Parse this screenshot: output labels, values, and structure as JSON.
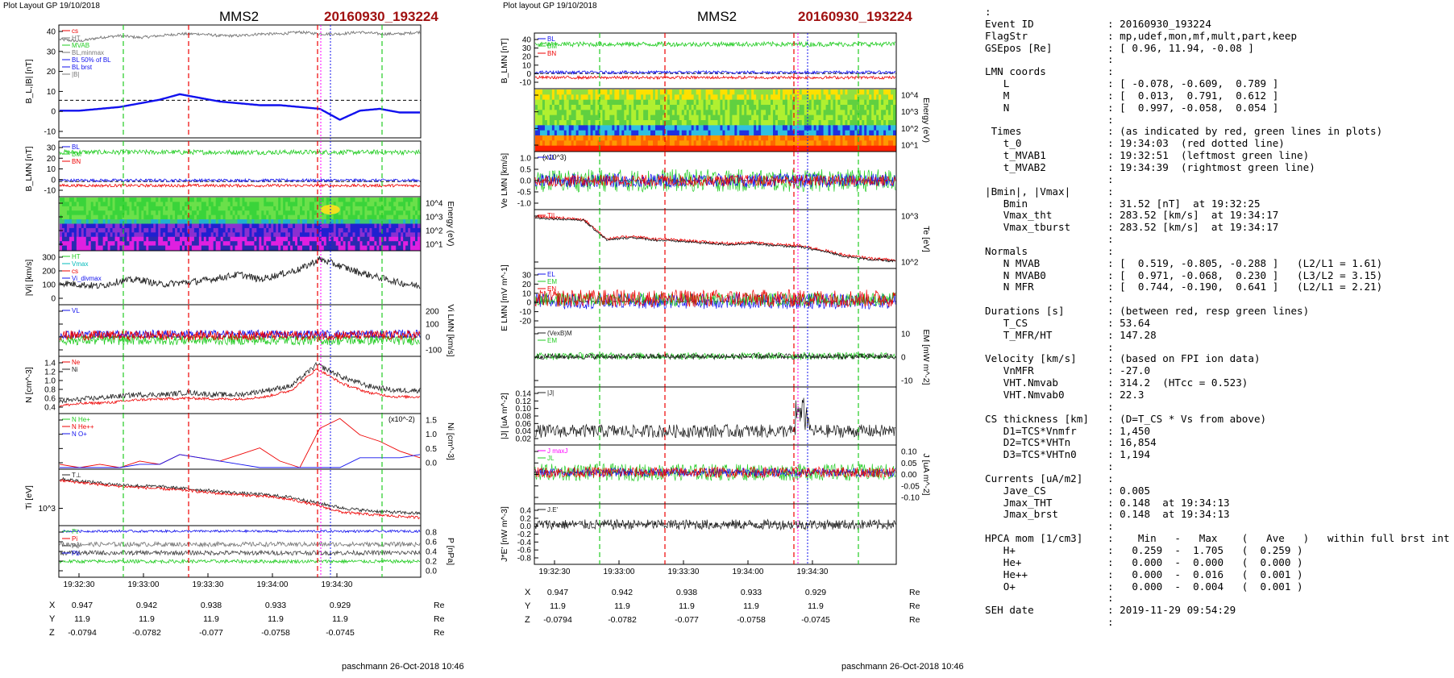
{
  "colors": {
    "black": "#000000",
    "red": "#ee0000",
    "green": "#22cc22",
    "blue": "#1111ee",
    "gray": "#777777",
    "darkred": "#a01010",
    "magenta": "#ff00ff",
    "cyan": "#00bbbb"
  },
  "time_ticks": [
    "19:32:30",
    "19:33:00",
    "19:33:30",
    "19:34:00",
    "19:34:30"
  ],
  "left_panel": {
    "header": "Plot Layout GP 19/10/2018",
    "spacecraft": "MMS2",
    "event": "20160930_193224",
    "footer": "paschmann 26-Oct-2018 10:46",
    "ephemeris": {
      "X": [
        "0.947",
        "0.942",
        "0.938",
        "0.933",
        "0.929"
      ],
      "Y": [
        "11.9",
        "11.9",
        "11.9",
        "11.9",
        "11.9"
      ],
      "Z": [
        "-0.0794",
        "-0.0782",
        "-0.077",
        "-0.0758",
        "-0.0745"
      ],
      "unit": "Re"
    }
  },
  "right_panel": {
    "header": "Plot layout GP 19/10/2018",
    "spacecraft": "MMS2",
    "event": "20160930_193224",
    "footer": "paschmann 26-Oct-2018 10:46",
    "ephemeris": {
      "X": [
        "0.947",
        "0.942",
        "0.938",
        "0.933",
        "0.929"
      ],
      "Y": [
        "11.9",
        "11.9",
        "11.9",
        "11.9",
        "11.9"
      ],
      "Z": [
        "-0.0794",
        "-0.0782",
        "-0.077",
        "-0.0758",
        "-0.0745"
      ],
      "unit": "Re"
    }
  },
  "chart_data": [
    {
      "type": "line",
      "id": "L1",
      "ylabel": "B_L,|B| [nT]",
      "ylim": [
        -20,
        40
      ],
      "ticks": [
        "40",
        "30",
        "20",
        "10",
        "0",
        "-10"
      ],
      "legend": [
        "cs",
        "HT",
        "MVAB",
        "BL,minmax",
        "BL 50% of BL",
        "BL brst",
        "|B|"
      ],
      "series": [
        {
          "name": "|B|",
          "values": [
            33,
            32,
            34,
            35,
            34,
            35,
            36,
            36,
            35,
            35,
            36,
            36,
            37,
            36,
            36,
            37,
            36,
            36,
            37
          ]
        },
        {
          "name": "BL brst",
          "values": [
            -6,
            -6,
            -5,
            -4,
            -2,
            0,
            3,
            1,
            -1,
            -2,
            -3,
            -3,
            -4,
            -5,
            -11,
            -6,
            -5,
            -7,
            -7
          ]
        }
      ]
    },
    {
      "type": "line",
      "id": "L2",
      "ylabel": "B_LMN [nT]",
      "ylim": [
        -15,
        40
      ],
      "ticks": [
        "30",
        "20",
        "10",
        "0",
        "-10"
      ],
      "legend": [
        "BL",
        "BM",
        "BN"
      ]
    },
    {
      "type": "heatmap",
      "id": "L3",
      "ylabel": "Energy (eV)",
      "ticks": [
        "10^4",
        "10^3",
        "10^2",
        "10^1"
      ]
    },
    {
      "type": "line",
      "id": "L4",
      "ylabel": "|Vi| [km/s]",
      "ylim": [
        0,
        300
      ],
      "ticks": [
        "300",
        "200",
        "100",
        "0"
      ],
      "legend": [
        "HT",
        "Vmax",
        "cs",
        "Vi_divmax"
      ],
      "series": [
        {
          "name": "|Vi|",
          "values": [
            120,
            110,
            100,
            130,
            140,
            110,
            120,
            130,
            150,
            170,
            140,
            170,
            200,
            260,
            220,
            180,
            150,
            120,
            100
          ]
        }
      ]
    },
    {
      "type": "line",
      "id": "L5",
      "ylabel": "Vi LMN [km/s]",
      "ylim": [
        -150,
        250
      ],
      "ticks": [
        "200",
        "100",
        "0",
        "-100"
      ],
      "legend": [
        "VL"
      ]
    },
    {
      "type": "line",
      "id": "L6",
      "ylabel": "N [cm^-3]",
      "ylim": [
        0.2,
        1.45
      ],
      "ticks": [
        "1.4",
        "1.2",
        "1.0",
        "0.8",
        "0.6",
        "0.4"
      ],
      "legend": [
        "Ne",
        "Ni"
      ]
    },
    {
      "type": "line",
      "id": "L7",
      "ylabel": "Ni [cm^-3]",
      "ylim": [
        0,
        1.6
      ],
      "ticks": [
        "1.5",
        "1.0",
        "0.5",
        "0.0"
      ],
      "annotation": "(x10^-2)",
      "legend": [
        "N He+",
        "N He++",
        "N O+"
      ],
      "series": [
        {
          "name": "N He++",
          "values": [
            0.1,
            0.0,
            0.1,
            0.0,
            0.2,
            0.1,
            0.4,
            0.3,
            0.2,
            0.4,
            0.6,
            0.2,
            0.0,
            1.2,
            1.5,
            1.0,
            0.8,
            0.5,
            0.3
          ]
        },
        {
          "name": "N O+",
          "values": [
            0.0,
            0.0,
            0.0,
            0.0,
            0.1,
            0.1,
            0.4,
            0.3,
            0.2,
            0.1,
            0.0,
            0.0,
            0.0,
            0.0,
            0.0,
            0.3,
            0.3,
            0.3,
            0.4
          ]
        }
      ]
    },
    {
      "type": "line",
      "id": "L8",
      "ylabel": "Ti [eV]",
      "ticks": [
        "10^3"
      ],
      "legend": [
        "T⊥"
      ]
    },
    {
      "type": "line",
      "id": "L9",
      "ylabel": "P [nPa]",
      "ylim": [
        0,
        0.85
      ],
      "ticks": [
        "0.8",
        "0.6",
        "0.4",
        "0.2",
        "0.0"
      ],
      "legend": [
        "Pt",
        "Pi",
        "Pe",
        "Pb"
      ]
    },
    {
      "type": "line",
      "id": "R1",
      "ylabel": "B_LMN [nT]",
      "ylim": [
        -15,
        40
      ],
      "ticks": [
        "40",
        "30",
        "20",
        "10",
        "0",
        "-10"
      ],
      "legend": [
        "BL",
        "BM",
        "BN"
      ]
    },
    {
      "type": "heatmap",
      "id": "R2",
      "ylabel": "Energy (eV)",
      "ticks": [
        "10^4",
        "10^3",
        "10^2",
        "10^1"
      ]
    },
    {
      "type": "line",
      "id": "R3",
      "ylabel": "Ve LMN [km/s]",
      "annotation": "(x10^3)",
      "ylim": [
        -1.2,
        1.2
      ],
      "ticks": [
        "1.0",
        "0.5",
        "0.0",
        "-0.5",
        "-1.0"
      ],
      "legend": [
        "VL"
      ]
    },
    {
      "type": "line",
      "id": "R4",
      "ylabel": "Te [eV]",
      "ticks": [
        "10^3",
        "10^2"
      ],
      "legend": [
        "T||"
      ]
    },
    {
      "type": "line",
      "id": "R5",
      "ylabel": "E LMN [mV m^-1]",
      "ylim": [
        -25,
        32
      ],
      "ticks": [
        "30",
        "20",
        "10",
        "0",
        "-10",
        "-20"
      ],
      "legend": [
        "EL",
        "EM",
        "EN"
      ]
    },
    {
      "type": "line",
      "id": "R6",
      "ylabel": "EM [mW m^-2]",
      "ylim": [
        -12,
        12
      ],
      "ticks": [
        "10",
        "0",
        "-10"
      ],
      "legend": [
        "(VexB)M",
        "EM"
      ]
    },
    {
      "type": "line",
      "id": "R7",
      "ylabel": "|J| [uA m^-2]",
      "ylim": [
        0,
        0.145
      ],
      "ticks": [
        "0.14",
        "0.12",
        "0.10",
        "0.08",
        "0.06",
        "0.04",
        "0.02"
      ],
      "legend": [
        "|J|"
      ]
    },
    {
      "type": "line",
      "id": "R8",
      "ylabel": "J [uA m^-2]",
      "ylim": [
        -0.14,
        0.12
      ],
      "ticks": [
        "0.10",
        "0.05",
        "0.00",
        "-0.05",
        "-0.10"
      ],
      "legend": [
        "J maxJ",
        "JL"
      ]
    },
    {
      "type": "line",
      "id": "R9",
      "ylabel": "J*E' [nW m^-3]",
      "ylim": [
        -0.9,
        0.45
      ],
      "ticks": [
        "0.4",
        "0.2",
        "0.0",
        "-0.2",
        "-0.4",
        "-0.6",
        "-0.8"
      ],
      "legend": [
        "J.E'"
      ]
    }
  ],
  "summary": [
    [
      ":",
      ""
    ],
    [
      "Event ID",
      ": 20160930_193224"
    ],
    [
      "FlagStr",
      ": mp,udef,mon,mf,mult,part,keep"
    ],
    [
      "GSEpos [Re]",
      ": [ 0.96, 11.94, -0.08 ]"
    ],
    [
      "",
      ":"
    ],
    [
      "LMN coords",
      ":"
    ],
    [
      "   L",
      ": [ -0.078, -0.609,  0.789 ]"
    ],
    [
      "   M",
      ": [  0.013,  0.791,  0.612 ]"
    ],
    [
      "   N",
      ": [  0.997, -0.058,  0.054 ]"
    ],
    [
      "",
      ":"
    ],
    [
      " Times",
      ": (as indicated by red, green lines in plots)"
    ],
    [
      "   t_0",
      ": 19:34:03  (red dotted line)"
    ],
    [
      "   t_MVAB1",
      ": 19:32:51  (leftmost green line)"
    ],
    [
      "   t_MVAB2",
      ": 19:34:39  (rightmost green line)"
    ],
    [
      "",
      ":"
    ],
    [
      "|Bmin|, |Vmax|",
      ":"
    ],
    [
      "   Bmin",
      ": 31.52 [nT]  at 19:32:25"
    ],
    [
      "   Vmax_tht",
      ": 283.52 [km/s]  at 19:34:17"
    ],
    [
      "   Vmax_tburst",
      ": 283.52 [km/s]  at 19:34:17"
    ],
    [
      "",
      ":"
    ],
    [
      "Normals",
      ":"
    ],
    [
      "   N MVAB",
      ": [  0.519, -0.805, -0.288 ]   (L2/L1 = 1.61)"
    ],
    [
      "   N MVAB0",
      ": [  0.971, -0.068,  0.230 ]   (L3/L2 = 3.15)"
    ],
    [
      "   N MFR",
      ": [  0.744, -0.190,  0.641 ]   (L2/L1 = 2.21)"
    ],
    [
      "",
      ":"
    ],
    [
      "Durations [s]",
      ": (between red, resp green lines)"
    ],
    [
      "   T_CS",
      ": 53.64"
    ],
    [
      "   T_MFR/HT",
      ": 147.28"
    ],
    [
      "",
      ":"
    ],
    [
      "Velocity [km/s]",
      ": (based on FPI ion data)"
    ],
    [
      "   VnMFR",
      ": -27.0"
    ],
    [
      "   VHT.Nmvab",
      ": 314.2  (HTcc = 0.523)"
    ],
    [
      "   VHT.Nmvab0",
      ": 22.3"
    ],
    [
      "",
      ":"
    ],
    [
      "CS thickness [km]",
      ": (D=T_CS * Vs from above)"
    ],
    [
      "   D1=TCS*Vnmfr",
      ": 1,450"
    ],
    [
      "   D2=TCS*VHTn",
      ": 16,854"
    ],
    [
      "   D3=TCS*VHTn0",
      ": 1,194"
    ],
    [
      "",
      ":"
    ],
    [
      "Currents [uA/m2]",
      ":"
    ],
    [
      "   Jave_CS",
      ": 0.005"
    ],
    [
      "   Jmax_THT",
      ": 0.148  at 19:34:13"
    ],
    [
      "   Jmax_brst",
      ": 0.148  at 19:34:13"
    ],
    [
      "",
      ":"
    ],
    [
      "HPCA mom [1/cm3]",
      ":    Min   -   Max    (   Ave   )   within full brst int"
    ],
    [
      "   H+",
      ":   0.259  -  1.705   (  0.259 )"
    ],
    [
      "   He+",
      ":   0.000  -  0.000   (  0.000 )"
    ],
    [
      "   He++",
      ":   0.000  -  0.016   (  0.001 )"
    ],
    [
      "   O+",
      ":   0.000  -  0.004   (  0.001 )"
    ],
    [
      "",
      ":"
    ],
    [
      "SEH date",
      ": 2019-11-29 09:54:29"
    ],
    [
      "",
      ":"
    ]
  ]
}
